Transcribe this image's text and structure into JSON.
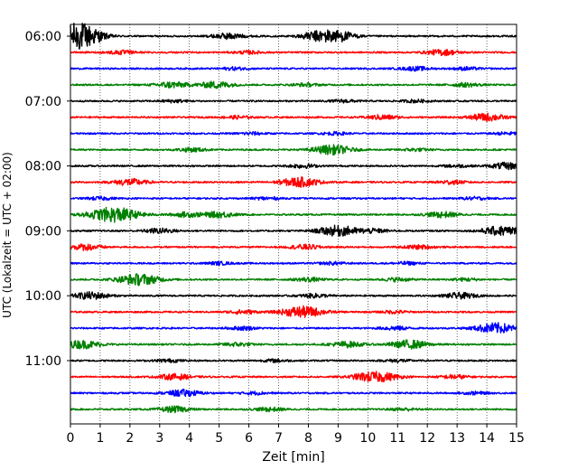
{
  "chart_data": {
    "type": "line",
    "title": "",
    "xlabel": "Zeit  [min]",
    "ylabel": "UTC (Lokalzeit = UTC + 02:00)",
    "xlim": [
      0,
      15
    ],
    "x_ticks": [
      0,
      1,
      2,
      3,
      4,
      5,
      6,
      7,
      8,
      9,
      10,
      11,
      12,
      13,
      14,
      15
    ],
    "grid": "vertical-dotted",
    "legend": "none",
    "row_interval_minutes": 15,
    "y_tick_labels": [
      "06:00",
      "07:00",
      "08:00",
      "09:00",
      "10:00",
      "11:00"
    ],
    "line_colors": [
      "#000000",
      "#ff0000",
      "#0000ff",
      "#008000"
    ],
    "traces": [
      {
        "start": "06:00",
        "color": "#000000",
        "bursts": [
          [
            0.1,
            0.55
          ],
          [
            0.3,
            0.6
          ],
          [
            0.5,
            0.45
          ],
          [
            5.3,
            0.3
          ],
          [
            8.2,
            0.28
          ],
          [
            8.75,
            0.5
          ],
          [
            9.2,
            0.2
          ]
        ]
      },
      {
        "start": "06:15",
        "color": "#ff0000",
        "bursts": [
          [
            1.7,
            0.2
          ],
          [
            6.0,
            0.15
          ],
          [
            12.5,
            0.3
          ]
        ]
      },
      {
        "start": "06:30",
        "color": "#0000ff",
        "bursts": [
          [
            5.5,
            0.14
          ],
          [
            11.6,
            0.2
          ],
          [
            13.3,
            0.15
          ]
        ]
      },
      {
        "start": "06:45",
        "color": "#008000",
        "bursts": [
          [
            3.4,
            0.32
          ],
          [
            4.9,
            0.36
          ],
          [
            7.9,
            0.15
          ],
          [
            13.3,
            0.2
          ]
        ]
      },
      {
        "start": "07:00",
        "color": "#000000",
        "bursts": [
          [
            3.5,
            0.14
          ],
          [
            9.2,
            0.14
          ],
          [
            11.6,
            0.14
          ]
        ]
      },
      {
        "start": "07:15",
        "color": "#ff0000",
        "bursts": [
          [
            5.6,
            0.15
          ],
          [
            10.5,
            0.25
          ],
          [
            14.0,
            0.4
          ]
        ]
      },
      {
        "start": "07:30",
        "color": "#0000ff",
        "bursts": [
          [
            6.1,
            0.14
          ],
          [
            8.9,
            0.14
          ],
          [
            14.7,
            0.14
          ]
        ]
      },
      {
        "start": "07:45",
        "color": "#008000",
        "bursts": [
          [
            4.1,
            0.2
          ],
          [
            8.8,
            0.5
          ],
          [
            11.6,
            0.14
          ]
        ]
      },
      {
        "start": "08:00",
        "color": "#000000",
        "bursts": [
          [
            7.8,
            0.2
          ],
          [
            13.0,
            0.14
          ],
          [
            14.7,
            0.35
          ]
        ]
      },
      {
        "start": "08:15",
        "color": "#ff0000",
        "bursts": [
          [
            2.0,
            0.35
          ],
          [
            7.7,
            0.5
          ],
          [
            12.8,
            0.2
          ]
        ]
      },
      {
        "start": "08:30",
        "color": "#0000ff",
        "bursts": [
          [
            1.0,
            0.15
          ],
          [
            6.6,
            0.14
          ],
          [
            13.6,
            0.14
          ]
        ]
      },
      {
        "start": "08:45",
        "color": "#008000",
        "bursts": [
          [
            1.45,
            0.8
          ],
          [
            3.9,
            0.25
          ],
          [
            5.0,
            0.3
          ],
          [
            12.5,
            0.3
          ]
        ]
      },
      {
        "start": "09:00",
        "color": "#000000",
        "bursts": [
          [
            3.0,
            0.25
          ],
          [
            9.0,
            0.55
          ],
          [
            10.2,
            0.2
          ],
          [
            14.5,
            0.5
          ]
        ]
      },
      {
        "start": "09:15",
        "color": "#ff0000",
        "bursts": [
          [
            0.5,
            0.32
          ],
          [
            7.9,
            0.25
          ],
          [
            11.7,
            0.2
          ]
        ]
      },
      {
        "start": "09:30",
        "color": "#0000ff",
        "bursts": [
          [
            5.0,
            0.14
          ],
          [
            8.8,
            0.14
          ],
          [
            11.3,
            0.14
          ]
        ]
      },
      {
        "start": "09:45",
        "color": "#008000",
        "bursts": [
          [
            2.3,
            0.6
          ],
          [
            8.0,
            0.2
          ],
          [
            11.0,
            0.18
          ],
          [
            13.3,
            0.15
          ]
        ]
      },
      {
        "start": "10:00",
        "color": "#000000",
        "bursts": [
          [
            0.7,
            0.38
          ],
          [
            8.2,
            0.2
          ],
          [
            13.1,
            0.3
          ]
        ]
      },
      {
        "start": "10:15",
        "color": "#ff0000",
        "bursts": [
          [
            5.8,
            0.2
          ],
          [
            7.8,
            0.6
          ],
          [
            10.9,
            0.15
          ]
        ]
      },
      {
        "start": "10:30",
        "color": "#0000ff",
        "bursts": [
          [
            5.8,
            0.18
          ],
          [
            10.9,
            0.2
          ],
          [
            14.3,
            0.55
          ]
        ]
      },
      {
        "start": "10:45",
        "color": "#008000",
        "bursts": [
          [
            0.4,
            0.42
          ],
          [
            5.6,
            0.2
          ],
          [
            9.3,
            0.3
          ],
          [
            11.4,
            0.45
          ]
        ]
      },
      {
        "start": "11:00",
        "color": "#000000",
        "bursts": [
          [
            3.3,
            0.15
          ],
          [
            6.9,
            0.14
          ],
          [
            11.0,
            0.14
          ]
        ]
      },
      {
        "start": "11:15",
        "color": "#ff0000",
        "bursts": [
          [
            3.5,
            0.3
          ],
          [
            9.9,
            0.3
          ],
          [
            10.5,
            0.4
          ],
          [
            12.9,
            0.2
          ]
        ]
      },
      {
        "start": "11:30",
        "color": "#0000ff",
        "bursts": [
          [
            3.8,
            0.35
          ],
          [
            6.2,
            0.14
          ],
          [
            13.6,
            0.14
          ]
        ]
      },
      {
        "start": "11:45",
        "color": "#008000",
        "bursts": [
          [
            3.5,
            0.3
          ],
          [
            6.7,
            0.2
          ],
          [
            11.2,
            0.14
          ]
        ]
      }
    ]
  }
}
